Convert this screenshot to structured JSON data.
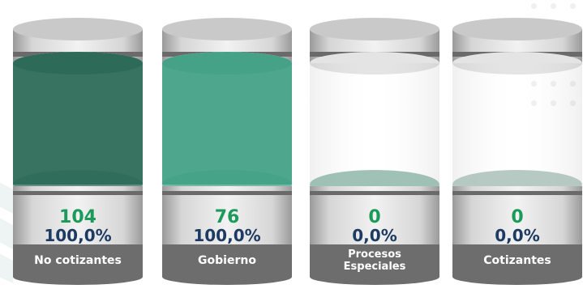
{
  "colors": {
    "count_text": "#1b9a5a",
    "percent_text": "#1d3a63",
    "label_band": "#6d6d6d",
    "cap": "#c9c9c9"
  },
  "cylinders": [
    {
      "count": "104",
      "percent": "100,0%",
      "label": "No cotizantes",
      "fill_fraction": 1.0,
      "liquid_color": "#2d6b58"
    },
    {
      "count": "76",
      "percent": "100,0%",
      "label": "Gobierno",
      "fill_fraction": 1.0,
      "liquid_color": "#45a287"
    },
    {
      "count": "0",
      "percent": "0,0%",
      "label": "Procesos\nEspeciales",
      "fill_fraction": 0.0,
      "liquid_color": "#8fb7a9"
    },
    {
      "count": "0",
      "percent": "0,0%",
      "label": "Cotizantes",
      "fill_fraction": 0.0,
      "liquid_color": "#a9c0b7"
    }
  ]
}
